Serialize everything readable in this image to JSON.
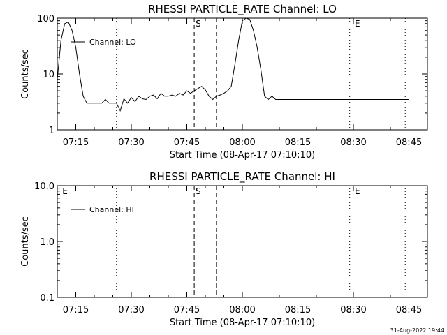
{
  "footer": {
    "timestamp": "31-Aug-2022 19:44"
  },
  "chart_data": [
    {
      "type": "line",
      "title": "RHESSI PARTICLE_RATE Channel: LO",
      "xlabel": "Start Time (08-Apr-17 07:10:10)",
      "ylabel": "Counts/sec",
      "yscale": "log",
      "ylim": [
        1,
        100
      ],
      "xlim": [
        "07:10",
        "08:50"
      ],
      "x_ticks": [
        "07:15",
        "07:30",
        "07:45",
        "08:00",
        "08:15",
        "08:30",
        "08:45"
      ],
      "y_ticks": [
        "1",
        "10",
        "100"
      ],
      "legend": {
        "label": "Channel: LO",
        "position": "top-left"
      },
      "markers": {
        "dotted": [
          "07:26",
          "08:29",
          "08:44"
        ],
        "dashed": [
          "07:47",
          "07:53"
        ],
        "letters": [
          {
            "text": "S",
            "x": "07:47"
          },
          {
            "text": "E",
            "x": "08:30"
          }
        ]
      },
      "series": [
        {
          "x": [
            "07:10",
            "07:11",
            "07:12",
            "07:13",
            "07:14",
            "07:15",
            "07:16",
            "07:17",
            "07:18",
            "07:19",
            "07:20",
            "07:21",
            "07:22",
            "07:23",
            "07:24",
            "07:25",
            "07:26",
            "07:27",
            "07:28",
            "07:29",
            "07:30",
            "07:31",
            "07:32",
            "07:33",
            "07:34",
            "07:35",
            "07:36",
            "07:37",
            "07:38",
            "07:39",
            "07:40",
            "07:41",
            "07:42",
            "07:43",
            "07:44",
            "07:45",
            "07:46",
            "07:47",
            "07:48",
            "07:49",
            "07:50",
            "07:51",
            "07:52",
            "07:53",
            "07:54",
            "07:55",
            "07:56",
            "07:57",
            "07:58",
            "07:59",
            "08:00",
            "08:01",
            "08:02",
            "08:03",
            "08:04",
            "08:05",
            "08:06",
            "08:07",
            "08:08",
            "08:09",
            "08:10",
            "08:12",
            "08:14",
            "08:16",
            "08:18",
            "08:20",
            "08:22",
            "08:24",
            "08:26",
            "08:28",
            "08:30",
            "08:32",
            "08:34",
            "08:36",
            "08:38",
            "08:40",
            "08:42",
            "08:44",
            "08:45"
          ],
          "y": [
            8,
            40,
            80,
            85,
            60,
            30,
            10,
            4,
            3,
            3,
            3,
            3,
            3,
            3.5,
            3,
            3,
            3,
            2.2,
            3.6,
            3,
            3.8,
            3.2,
            4,
            3.6,
            3.5,
            4,
            4.2,
            3.6,
            4.5,
            4,
            4,
            4.2,
            4,
            4.5,
            4.2,
            5,
            4.5,
            5,
            5.5,
            6,
            5.2,
            4,
            3.5,
            4,
            4.2,
            4.5,
            5,
            6,
            15,
            40,
            90,
            110,
            95,
            60,
            30,
            12,
            4,
            3.5,
            4,
            3.5,
            3.5,
            3.5,
            3.5,
            3.5,
            3.5,
            3.5,
            3.5,
            3.5,
            3.5,
            3.5,
            3.5,
            3.5,
            3.5,
            3.5,
            3.5,
            3.5,
            3.5,
            3.5,
            3.5
          ]
        }
      ]
    },
    {
      "type": "line",
      "title": "RHESSI PARTICLE_RATE Channel: HI",
      "xlabel": "Start Time (08-Apr-17 07:10:10)",
      "ylabel": "Counts/sec",
      "yscale": "log",
      "ylim": [
        0.1,
        10
      ],
      "xlim": [
        "07:10",
        "08:50"
      ],
      "x_ticks": [
        "07:15",
        "07:30",
        "07:45",
        "08:00",
        "08:15",
        "08:30",
        "08:45"
      ],
      "y_ticks": [
        "0.1",
        "1.0",
        "10.0"
      ],
      "legend": {
        "label": "Channel: HI",
        "position": "top-left"
      },
      "markers": {
        "dotted": [
          "07:26",
          "08:29",
          "08:44"
        ],
        "dashed": [
          "07:47",
          "07:53"
        ],
        "letters": [
          {
            "text": "E",
            "x": "07:11"
          },
          {
            "text": "S",
            "x": "07:47"
          },
          {
            "text": "E",
            "x": "08:30"
          }
        ]
      },
      "series": []
    }
  ]
}
